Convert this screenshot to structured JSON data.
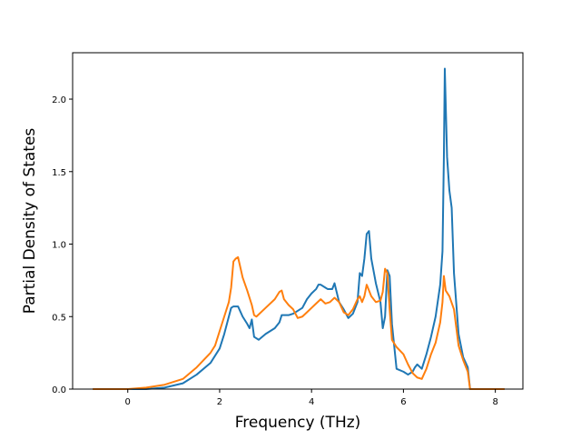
{
  "chart_data": {
    "type": "line",
    "title": "",
    "xlabel": "Frequency (THz)",
    "ylabel": "Partial Density of States",
    "xlim": [
      -1.2,
      8.6
    ],
    "ylim": [
      0.0,
      2.32
    ],
    "xticks": [
      {
        "value": 0,
        "label": "0"
      },
      {
        "value": 2,
        "label": "2"
      },
      {
        "value": 4,
        "label": "4"
      },
      {
        "value": 6,
        "label": "6"
      },
      {
        "value": 8,
        "label": "8"
      }
    ],
    "yticks": [
      {
        "value": 0.0,
        "label": "0.0"
      },
      {
        "value": 0.5,
        "label": "0.5"
      },
      {
        "value": 1.0,
        "label": "1.0"
      },
      {
        "value": 1.5,
        "label": "1.5"
      },
      {
        "value": 2.0,
        "label": "2.0"
      }
    ],
    "grid": false,
    "legend": "none",
    "series": [
      {
        "color": "#1f77b4",
        "x": [
          -0.76,
          0.0,
          0.4,
          0.8,
          1.2,
          1.5,
          1.8,
          2.0,
          2.1,
          2.2,
          2.25,
          2.3,
          2.4,
          2.5,
          2.6,
          2.65,
          2.7,
          2.75,
          2.85,
          3.0,
          3.2,
          3.3,
          3.35,
          3.5,
          3.6,
          3.8,
          3.9,
          4.0,
          4.1,
          4.15,
          4.2,
          4.3,
          4.35,
          4.45,
          4.5,
          4.6,
          4.7,
          4.8,
          4.9,
          5.0,
          5.05,
          5.1,
          5.15,
          5.2,
          5.25,
          5.3,
          5.4,
          5.5,
          5.55,
          5.6,
          5.65,
          5.7,
          5.75,
          5.85,
          6.0,
          6.1,
          6.2,
          6.25,
          6.3,
          6.4,
          6.5,
          6.6,
          6.7,
          6.8,
          6.85,
          6.88,
          6.9,
          6.95,
          7.0,
          7.05,
          7.1,
          7.2,
          7.3,
          7.4,
          7.45,
          8.2
        ],
        "y": [
          0.0,
          0.0,
          0.0,
          0.01,
          0.04,
          0.1,
          0.18,
          0.28,
          0.38,
          0.5,
          0.56,
          0.57,
          0.57,
          0.5,
          0.45,
          0.42,
          0.48,
          0.36,
          0.34,
          0.38,
          0.42,
          0.46,
          0.51,
          0.51,
          0.52,
          0.56,
          0.62,
          0.66,
          0.69,
          0.72,
          0.72,
          0.7,
          0.69,
          0.69,
          0.73,
          0.6,
          0.55,
          0.49,
          0.52,
          0.6,
          0.8,
          0.78,
          0.9,
          1.07,
          1.09,
          0.9,
          0.73,
          0.6,
          0.42,
          0.5,
          0.82,
          0.78,
          0.45,
          0.14,
          0.12,
          0.1,
          0.12,
          0.15,
          0.17,
          0.14,
          0.24,
          0.36,
          0.5,
          0.72,
          0.95,
          1.6,
          2.21,
          1.6,
          1.37,
          1.25,
          0.8,
          0.38,
          0.22,
          0.15,
          0.0,
          0.0
        ]
      },
      {
        "color": "#ff7f0e",
        "x": [
          -0.76,
          0.0,
          0.4,
          0.8,
          1.2,
          1.5,
          1.8,
          1.9,
          2.0,
          2.1,
          2.15,
          2.2,
          2.25,
          2.3,
          2.35,
          2.4,
          2.5,
          2.6,
          2.7,
          2.75,
          2.8,
          3.0,
          3.2,
          3.3,
          3.35,
          3.4,
          3.5,
          3.6,
          3.7,
          3.8,
          3.9,
          4.0,
          4.1,
          4.2,
          4.3,
          4.4,
          4.5,
          4.6,
          4.7,
          4.8,
          4.9,
          5.0,
          5.05,
          5.1,
          5.15,
          5.2,
          5.3,
          5.4,
          5.5,
          5.55,
          5.6,
          5.65,
          5.7,
          5.75,
          5.85,
          6.0,
          6.1,
          6.2,
          6.3,
          6.4,
          6.5,
          6.6,
          6.7,
          6.8,
          6.85,
          6.88,
          6.92,
          7.0,
          7.1,
          7.2,
          7.3,
          7.4,
          7.45,
          8.2
        ],
        "y": [
          0.0,
          0.0,
          0.01,
          0.03,
          0.07,
          0.15,
          0.25,
          0.3,
          0.4,
          0.5,
          0.55,
          0.6,
          0.7,
          0.88,
          0.9,
          0.91,
          0.77,
          0.68,
          0.58,
          0.51,
          0.5,
          0.56,
          0.62,
          0.67,
          0.68,
          0.62,
          0.58,
          0.55,
          0.49,
          0.5,
          0.53,
          0.56,
          0.59,
          0.62,
          0.59,
          0.6,
          0.63,
          0.6,
          0.53,
          0.51,
          0.55,
          0.62,
          0.64,
          0.6,
          0.64,
          0.72,
          0.64,
          0.6,
          0.61,
          0.67,
          0.83,
          0.8,
          0.55,
          0.34,
          0.29,
          0.24,
          0.17,
          0.11,
          0.08,
          0.07,
          0.14,
          0.24,
          0.32,
          0.46,
          0.6,
          0.78,
          0.68,
          0.64,
          0.55,
          0.3,
          0.2,
          0.12,
          0.0,
          0.0
        ]
      }
    ]
  }
}
